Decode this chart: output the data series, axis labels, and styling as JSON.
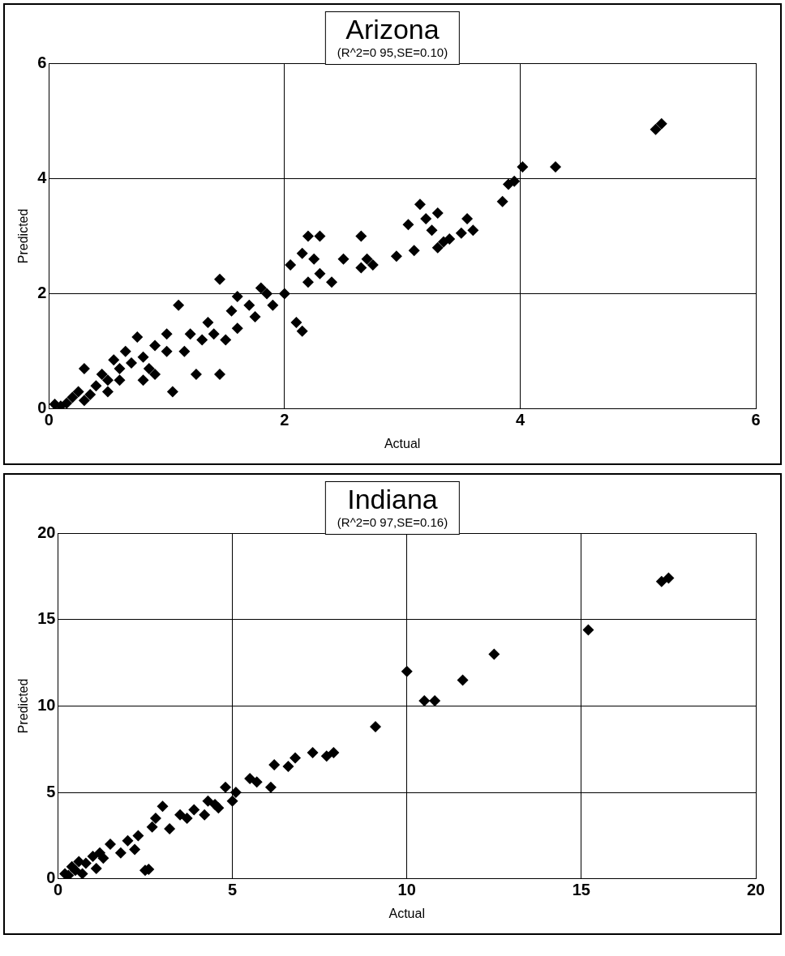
{
  "chart_data": [
    {
      "type": "scatter",
      "title": "Arizona",
      "subtitle": "(R^2=0 95,SE=0.10)",
      "xlabel": "Actual",
      "ylabel": "Predicted",
      "xlim": [
        0,
        6
      ],
      "ylim": [
        0,
        6
      ],
      "xticks": [
        0,
        2,
        4,
        6
      ],
      "yticks": [
        0,
        2,
        4,
        6
      ],
      "grid": true,
      "legend": false,
      "marker": "diamond",
      "series": [
        {
          "color": "#000000",
          "x": [
            5.15,
            5.2,
            4.3,
            4.02,
            3.95,
            3.9,
            3.85,
            3.55,
            3.6,
            3.5,
            3.3,
            3.2,
            3.15,
            3.25,
            3.3,
            3.35,
            3.4,
            3.05,
            3.1,
            2.95,
            2.65,
            2.7,
            2.65,
            2.75,
            2.5,
            2.4,
            2.3,
            2.2,
            2.15,
            2.25,
            2.3,
            2.2,
            2.1,
            2.15,
            2.05,
            2.0,
            1.9,
            1.8,
            1.75,
            1.6,
            1.45,
            1.45,
            1.3,
            1.35,
            1.2,
            1.1,
            1.05,
            1.25,
            1.0,
            0.9,
            0.8,
            0.75,
            0.7,
            0.6,
            0.5,
            0.4,
            0.3,
            0.35,
            0.25,
            0.2,
            0.15,
            0.1,
            0.05,
            0.5,
            0.6,
            0.55,
            0.9,
            1.0,
            1.15,
            1.6,
            1.7,
            1.85,
            1.55,
            0.45,
            0.65,
            0.85,
            1.4,
            1.5,
            0.3,
            0.8
          ],
          "values": [
            4.85,
            4.95,
            4.2,
            4.2,
            3.95,
            3.9,
            3.6,
            3.3,
            3.1,
            3.05,
            3.4,
            3.3,
            3.55,
            3.1,
            2.8,
            2.9,
            2.95,
            3.2,
            2.75,
            2.65,
            3.0,
            2.6,
            2.45,
            2.5,
            2.6,
            2.2,
            3.0,
            3.0,
            2.7,
            2.6,
            2.35,
            2.2,
            1.5,
            1.35,
            2.5,
            2.0,
            1.8,
            2.1,
            1.6,
            1.95,
            2.25,
            0.6,
            1.2,
            1.5,
            1.3,
            1.8,
            0.3,
            0.6,
            1.0,
            1.1,
            0.9,
            1.25,
            0.8,
            0.7,
            0.5,
            0.4,
            0.7,
            0.25,
            0.3,
            0.2,
            0.1,
            0.05,
            0.08,
            0.3,
            0.5,
            0.85,
            0.6,
            1.3,
            1.0,
            1.4,
            1.8,
            2.0,
            1.7,
            0.6,
            1.0,
            0.7,
            1.3,
            1.2,
            0.15,
            0.5
          ]
        }
      ]
    },
    {
      "type": "scatter",
      "title": "Indiana",
      "subtitle": "(R^2=0 97,SE=0.16)",
      "xlabel": "Actual",
      "ylabel": "Predicted",
      "xlim": [
        0,
        20
      ],
      "ylim": [
        0,
        20
      ],
      "xticks": [
        0,
        5,
        10,
        15,
        20
      ],
      "yticks": [
        0,
        5,
        10,
        15,
        20
      ],
      "grid": true,
      "legend": false,
      "marker": "diamond",
      "series": [
        {
          "color": "#000000",
          "x": [
            17.3,
            17.5,
            15.2,
            12.5,
            11.6,
            10.8,
            10.5,
            10.0,
            9.1,
            7.9,
            7.7,
            7.3,
            6.8,
            6.6,
            6.2,
            6.1,
            5.7,
            5.5,
            5.1,
            5.0,
            4.8,
            4.5,
            4.3,
            4.2,
            3.9,
            3.5,
            3.2,
            3.0,
            2.7,
            2.5,
            2.6,
            2.3,
            2.0,
            1.8,
            1.5,
            1.3,
            1.1,
            1.0,
            0.8,
            0.5,
            0.3,
            0.2,
            0.7,
            1.2,
            2.2,
            2.8,
            3.7,
            4.6,
            0.6,
            0.4
          ],
          "values": [
            17.2,
            17.4,
            14.4,
            13.0,
            11.5,
            10.3,
            10.3,
            12.0,
            8.8,
            7.3,
            7.1,
            7.3,
            7.0,
            6.5,
            6.6,
            5.3,
            5.6,
            5.8,
            5.0,
            4.5,
            5.3,
            4.3,
            4.5,
            3.7,
            4.0,
            3.7,
            2.9,
            4.2,
            3.0,
            0.5,
            0.55,
            2.5,
            2.2,
            1.5,
            2.0,
            1.2,
            0.6,
            1.3,
            0.9,
            0.5,
            0.2,
            0.3,
            0.3,
            1.5,
            1.7,
            3.5,
            3.5,
            4.1,
            1.0,
            0.7
          ]
        }
      ]
    }
  ]
}
